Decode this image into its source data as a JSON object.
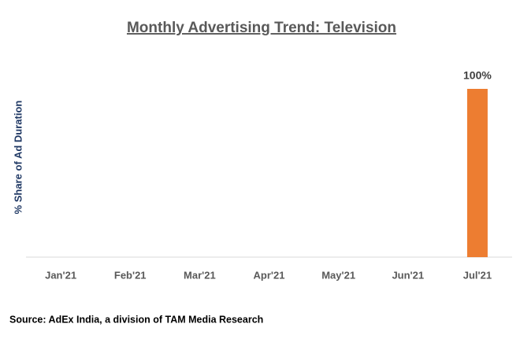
{
  "chart_data": {
    "type": "bar",
    "title": "Monthly Advertising Trend: Television",
    "y_label": "% Share of Ad Duration",
    "categories": [
      "Jan'21",
      "Feb'21",
      "Mar'21",
      "Apr'21",
      "May'21",
      "Jun'21",
      "Jul'21"
    ],
    "values": [
      0,
      0,
      0,
      0,
      0,
      0,
      100
    ],
    "value_labels": [
      null,
      null,
      null,
      null,
      null,
      null,
      "100%"
    ],
    "color": "#ed7d31",
    "ylim": [
      0,
      100
    ],
    "source": "Source: AdEx India, a division of TAM Media Research"
  }
}
